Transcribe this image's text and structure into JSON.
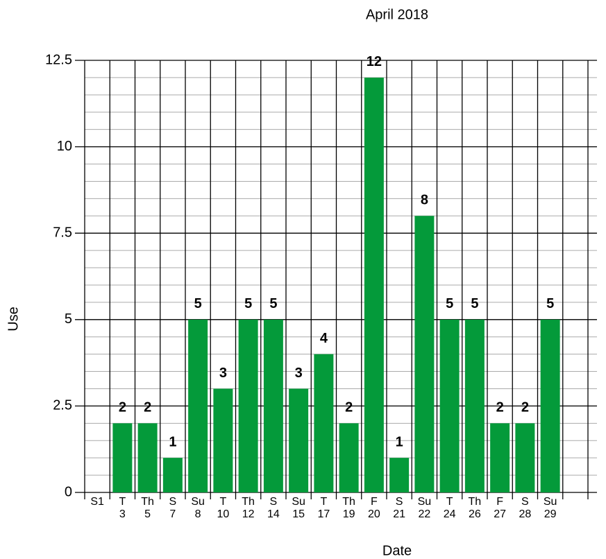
{
  "chart_data": {
    "type": "bar",
    "title": "April 2018",
    "x_label": "Date",
    "y_label": "Use",
    "categories": [
      "S1",
      "T\n3",
      "Th\n5",
      "S\n7",
      "Su\n8",
      "T\n10",
      "Th\n12",
      "S\n14",
      "Su\n15",
      "T\n17",
      "Th\n19",
      "F\n20",
      "S\n21",
      "Su\n22",
      "T\n24",
      "Th\n26",
      "F\n27",
      "S\n28",
      "Su\n29",
      null
    ],
    "values": [
      null,
      2,
      2,
      1,
      5,
      3,
      5,
      5,
      3,
      4,
      2,
      12,
      1,
      8,
      5,
      5,
      2,
      2,
      5,
      null
    ],
    "color": "#049a3a",
    "ylim": [
      0,
      12.5
    ],
    "yticks": [
      0,
      2.5,
      5,
      7.5,
      10,
      12.5
    ],
    "grid": true,
    "minor_grid": 0.5
  }
}
